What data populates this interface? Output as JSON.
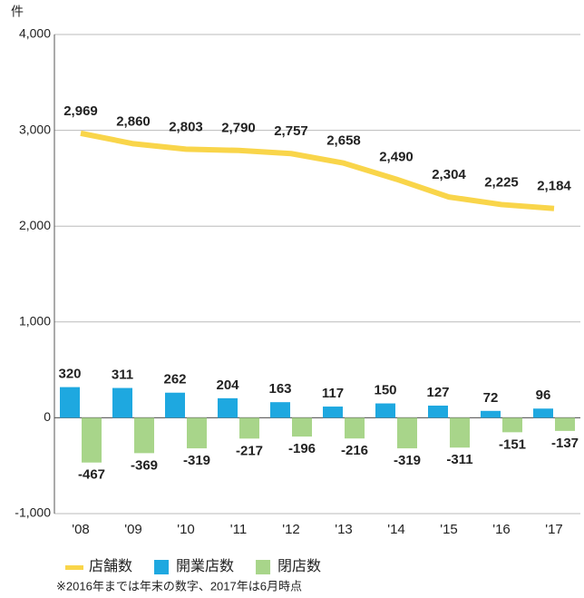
{
  "chart_data": {
    "type": "bar",
    "y_unit": "件",
    "categories": [
      "'08",
      "'09",
      "'10",
      "'11",
      "'12",
      "'13",
      "'14",
      "'15",
      "'16",
      "'17"
    ],
    "series": [
      {
        "name": "店舗数",
        "type": "line",
        "color": "#f9d54a",
        "values": [
          2969,
          2860,
          2803,
          2790,
          2757,
          2658,
          2490,
          2304,
          2225,
          2184
        ],
        "value_labels": [
          "2,969",
          "2,860",
          "2,803",
          "2,790",
          "2,757",
          "2,658",
          "2,490",
          "2,304",
          "2,225",
          "2,184"
        ]
      },
      {
        "name": "開業店数",
        "type": "bar",
        "color": "#1ea8e0",
        "values": [
          320,
          311,
          262,
          204,
          163,
          117,
          150,
          127,
          72,
          96
        ]
      },
      {
        "name": "閉店数",
        "type": "bar",
        "color": "#a8d58a",
        "values": [
          -467,
          -369,
          -319,
          -217,
          -196,
          -216,
          -319,
          -311,
          -151,
          -137
        ]
      }
    ],
    "ylim": [
      -1000,
      4000
    ],
    "yticks": [
      {
        "value": -1000,
        "label": "-1,000"
      },
      0,
      {
        "value": 1000,
        "label": "1,000"
      },
      {
        "value": 2000,
        "label": "2,000"
      },
      {
        "value": 3000,
        "label": "3,000"
      },
      {
        "value": 4000,
        "label": "4,000"
      }
    ],
    "grid": true,
    "note": "※2016年までは年末の数字、2017年は6月時点"
  }
}
